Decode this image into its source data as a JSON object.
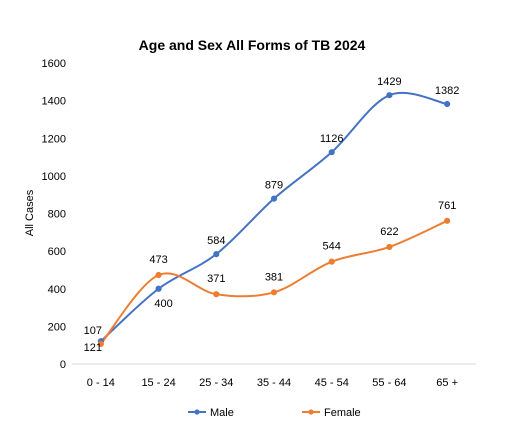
{
  "chart_data": {
    "type": "line",
    "title": "Age and Sex All Forms of TB  2024",
    "xlabel": "",
    "ylabel": "All Cases",
    "categories": [
      "0 - 14",
      "15 - 24",
      "25 - 34",
      "35 - 44",
      "45 - 54",
      "55 - 64",
      "65 +"
    ],
    "ylim": [
      0,
      1600
    ],
    "yticks": [
      "0",
      "200",
      "400",
      "600",
      "800",
      "1000",
      "1200",
      "1400",
      "1600"
    ],
    "grid": false,
    "smooth": true,
    "legend_position": "bottom",
    "series": [
      {
        "name": "Male",
        "color": "#4472C4",
        "values": [
          121,
          400,
          584,
          879,
          1126,
          1429,
          1382
        ],
        "labels": [
          "121",
          "400",
          "584",
          "879",
          "1126",
          "1429",
          "1382"
        ]
      },
      {
        "name": "Female",
        "color": "#ED7D31",
        "values": [
          107,
          473,
          371,
          381,
          544,
          622,
          761
        ],
        "labels": [
          "107",
          "473",
          "371",
          "381",
          "544",
          "622",
          "761"
        ]
      }
    ]
  }
}
